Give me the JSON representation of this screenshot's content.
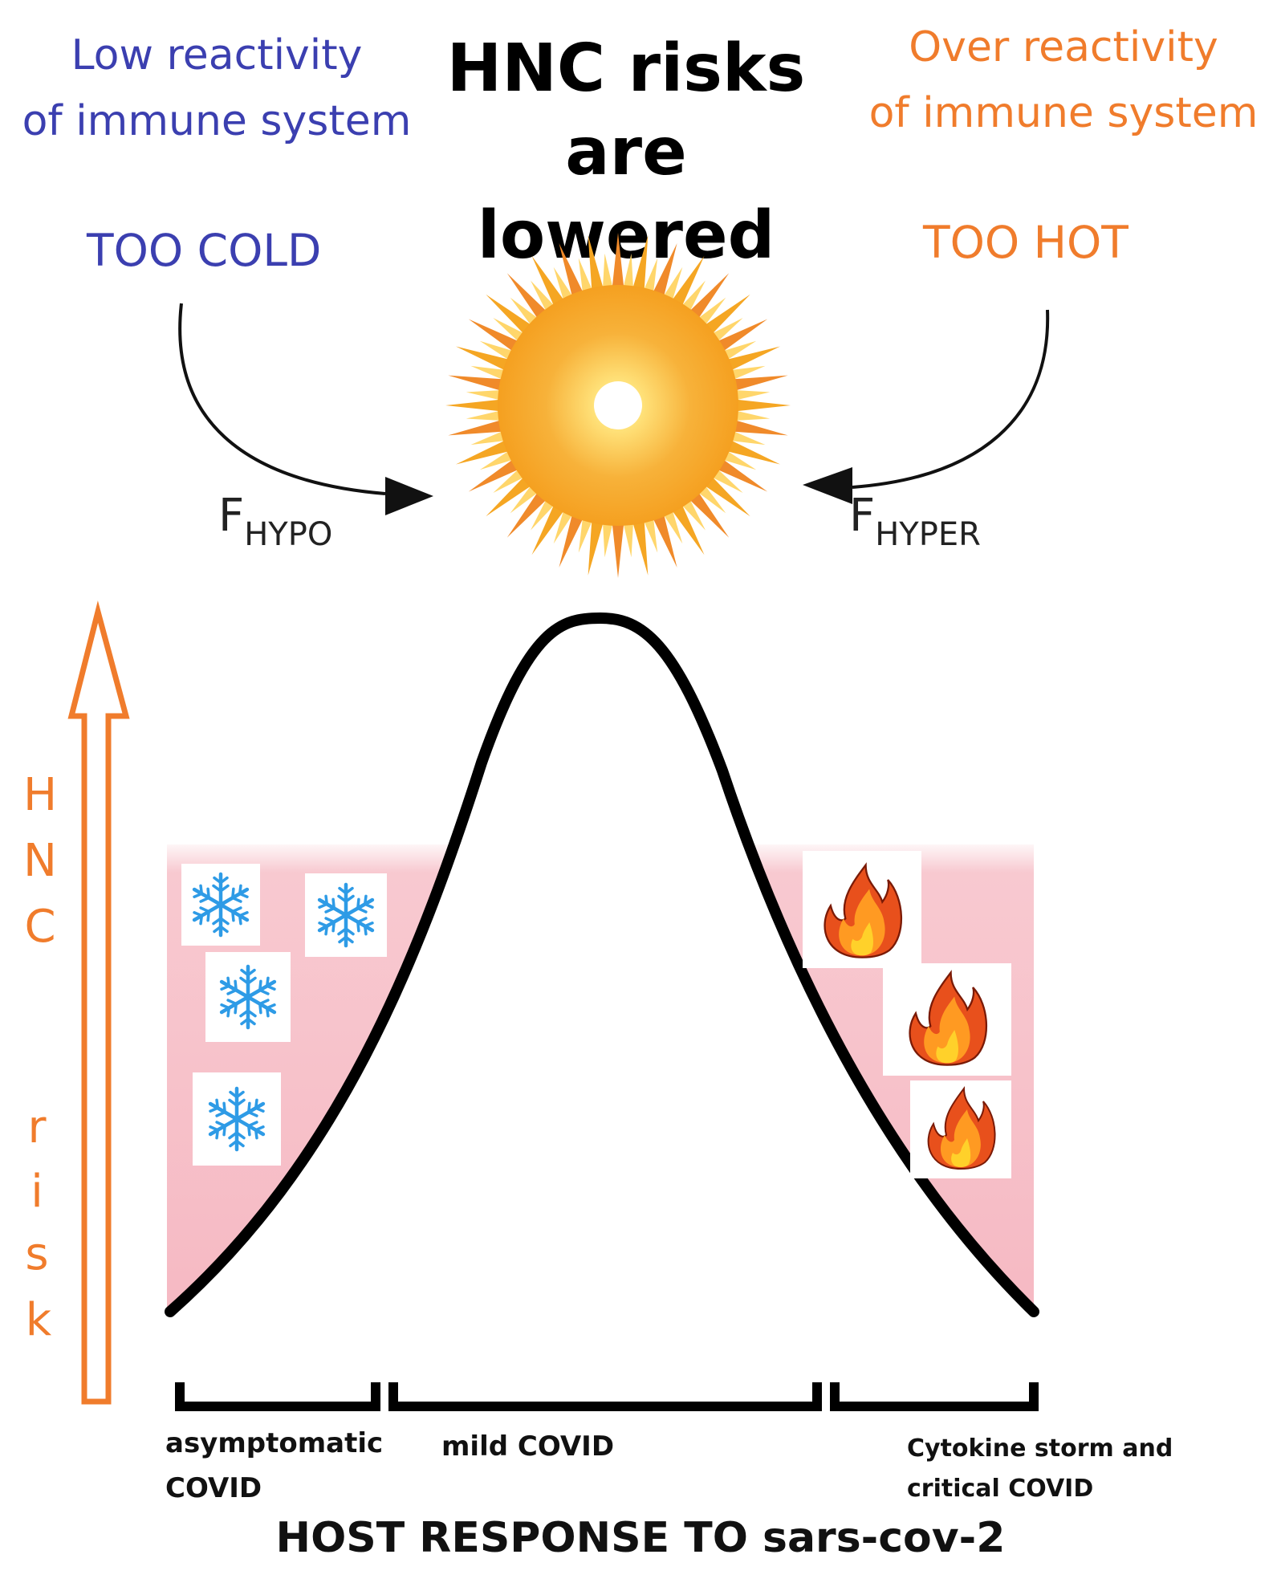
{
  "header": {
    "left_line1": "Low reactivity",
    "left_line2": "of immune system",
    "center_line1": "HNC risks",
    "center_line2": "are lowered",
    "right_line1": "Over reactivity",
    "right_line2": "of immune system"
  },
  "temperature": {
    "cold": "TOO COLD",
    "hot": "TOO HOT"
  },
  "forces": {
    "hypo_main": "F",
    "hypo_sub": "HYPO",
    "hyper_main": "F",
    "hyper_sub": "HYPER"
  },
  "axis": {
    "letters": [
      "H",
      "N",
      "C",
      "r",
      "i",
      "s",
      "k"
    ]
  },
  "categories": {
    "asymptomatic_line1": "asymptomatic",
    "asymptomatic_line2": "COVID",
    "mild": "mild COVID",
    "critical_line1": "Cytokine storm and",
    "critical_line2": "critical COVID"
  },
  "footer": {
    "title": "HOST RESPONSE TO sars-cov-2"
  },
  "colors": {
    "cold_text": "#3b3fb0",
    "hot_text": "#f07c2c",
    "risk_band": "#f7c3cb",
    "sun_outer": "#f5a623",
    "sun_inner": "#ffd45a",
    "snowflake": "#2e9be6",
    "flame_outer": "#e8501c",
    "flame_inner": "#ffd12a"
  },
  "icons": {
    "sun": "sun-icon",
    "snowflake": "snowflake-icon",
    "fire": "fire-icon"
  }
}
